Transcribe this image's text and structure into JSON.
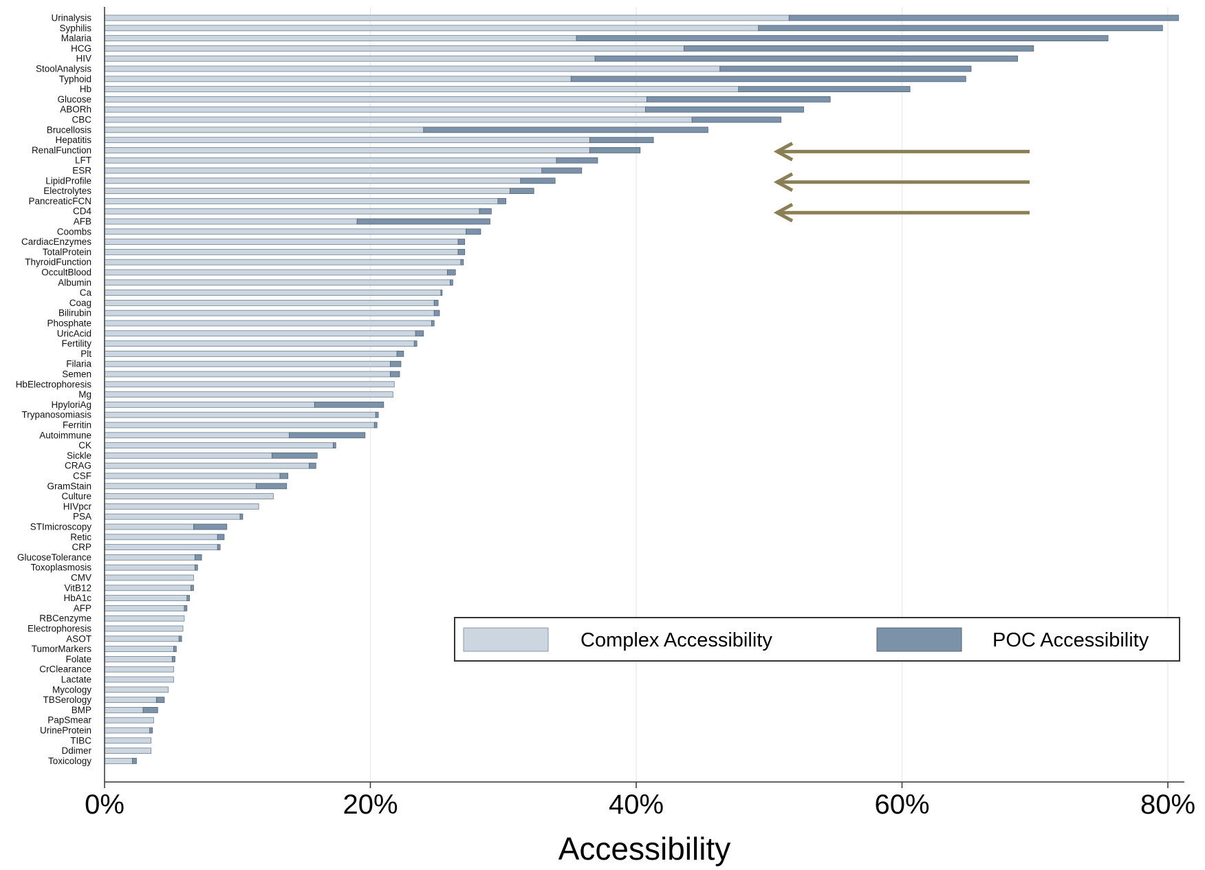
{
  "chart_data": {
    "type": "bar",
    "orientation": "horizontal",
    "stacked": true,
    "xlabel": "Accessibility",
    "ylabel": "",
    "xlim": [
      0,
      0.815
    ],
    "x_ticks": [
      0,
      0.2,
      0.4,
      0.6,
      0.8
    ],
    "x_tick_labels": [
      "0%",
      "20%",
      "40%",
      "60%",
      "80%"
    ],
    "grid": "vertical",
    "legend_position": "bottom-right",
    "colors": {
      "complex": "#ccd6e0",
      "poc": "#7c92a9",
      "arrow": "#8b7f55"
    },
    "categories": [
      "Urinalysis",
      "Syphilis",
      "Malaria",
      "HCG",
      "HIV",
      "StoolAnalysis",
      "Typhoid",
      "Hb",
      "Glucose",
      "ABORh",
      "CBC",
      "Brucellosis",
      "Hepatitis",
      "RenalFunction",
      "LFT",
      "ESR",
      "LipidProfile",
      "Electrolytes",
      "PancreaticFCN",
      "CD4",
      "AFB",
      "Coombs",
      "CardiacEnzymes",
      "TotalProtein",
      "ThyroidFunction",
      "OccultBlood",
      "Albumin",
      "Ca",
      "Coag",
      "Bilirubin",
      "Phosphate",
      "UricAcid",
      "Fertility",
      "Plt",
      "Filaria",
      "Semen",
      "HbElectrophoresis",
      "Mg",
      "HpyloriAg",
      "Trypanosomiasis",
      "Ferritin",
      "Autoimmune",
      "CK",
      "Sickle",
      "CRAG",
      "CSF",
      "GramStain",
      "Culture",
      "HIVpcr",
      "PSA",
      "STImicroscopy",
      "Retic",
      "CRP",
      "GlucoseTolerance",
      "Toxoplasmosis",
      "CMV",
      "VitB12",
      "HbA1c",
      "AFP",
      "RBCenzyme",
      "Electrophoresis",
      "ASOT",
      "TumorMarkers",
      "Folate",
      "CrClearance",
      "Lactate",
      "Mycology",
      "TBSerology",
      "BMP",
      "PapSmear",
      "UrineProtein",
      "TIBC",
      "Ddimer",
      "Toxicology"
    ],
    "series": [
      {
        "name": "Complex Accessibility",
        "values": [
          0.515,
          0.492,
          0.355,
          0.436,
          0.369,
          0.463,
          0.351,
          0.477,
          0.408,
          0.407,
          0.442,
          0.24,
          0.365,
          0.365,
          0.34,
          0.329,
          0.313,
          0.305,
          0.296,
          0.282,
          0.19,
          0.272,
          0.266,
          0.266,
          0.268,
          0.258,
          0.26,
          0.253,
          0.248,
          0.248,
          0.246,
          0.234,
          0.233,
          0.22,
          0.215,
          0.215,
          0.218,
          0.217,
          0.158,
          0.204,
          0.203,
          0.139,
          0.172,
          0.126,
          0.154,
          0.132,
          0.114,
          0.127,
          0.116,
          0.102,
          0.067,
          0.085,
          0.085,
          0.068,
          0.068,
          0.067,
          0.065,
          0.062,
          0.06,
          0.06,
          0.059,
          0.056,
          0.052,
          0.051,
          0.052,
          0.052,
          0.048,
          0.039,
          0.029,
          0.037,
          0.034,
          0.035,
          0.035,
          0.021
        ]
      },
      {
        "name": "POC Accessibility",
        "values": [
          0.293,
          0.304,
          0.4,
          0.263,
          0.318,
          0.189,
          0.297,
          0.129,
          0.138,
          0.119,
          0.067,
          0.214,
          0.048,
          0.038,
          0.031,
          0.03,
          0.026,
          0.018,
          0.006,
          0.009,
          0.1,
          0.011,
          0.005,
          0.005,
          0.002,
          0.006,
          0.002,
          0.001,
          0.003,
          0.004,
          0.002,
          0.006,
          0.002,
          0.005,
          0.008,
          0.007,
          0,
          0,
          0.052,
          0.002,
          0.002,
          0.057,
          0.002,
          0.034,
          0.005,
          0.006,
          0.023,
          0,
          0,
          0.002,
          0.025,
          0.005,
          0.002,
          0.005,
          0.002,
          0,
          0.002,
          0.002,
          0.002,
          0,
          0,
          0.002,
          0.002,
          0.002,
          0,
          0,
          0,
          0.006,
          0.011,
          0,
          0.002,
          0,
          0,
          0.003
        ]
      }
    ],
    "legend": [
      {
        "key": "complex",
        "label": "Complex Accessibility"
      },
      {
        "key": "poc",
        "label": "POC Accessibility"
      }
    ],
    "annotations": [
      {
        "type": "arrow",
        "pointing": "left",
        "near_category": "RenalFunction"
      },
      {
        "type": "arrow",
        "pointing": "left",
        "near_category": "LipidProfile"
      },
      {
        "type": "arrow",
        "pointing": "left",
        "near_category": "CD4"
      }
    ]
  }
}
